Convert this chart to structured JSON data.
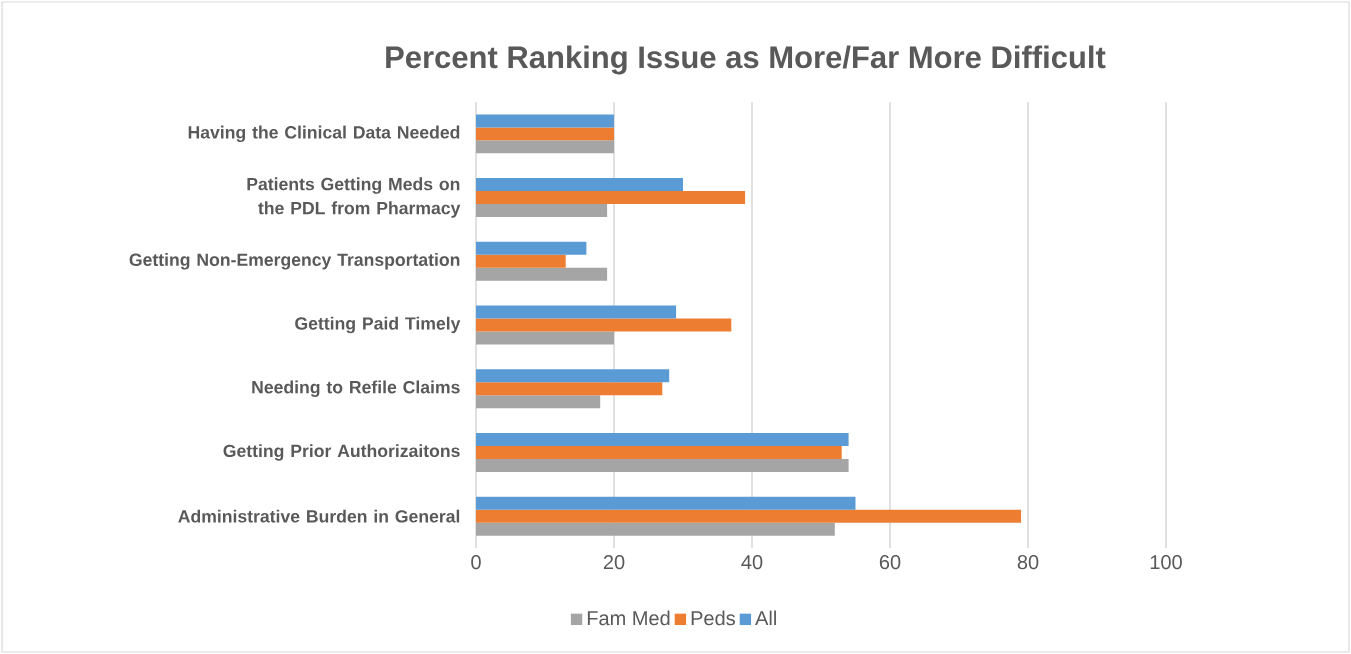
{
  "chart_data": {
    "type": "bar",
    "orientation": "horizontal",
    "title": "Percent Ranking Issue as More/Far More Difficult",
    "categories": [
      "Having the Clinical Data Needed",
      "Patients Getting Meds on the PDL from Pharmacy",
      "Getting Non-Emergency Transportation",
      "Getting Paid Timely",
      "Needing to Refile Claims",
      "Getting Prior Authorizaitons",
      "Administrative Burden in General"
    ],
    "series": [
      {
        "name": "Fam Med",
        "color": "#a5a5a5",
        "values": [
          20,
          19,
          19,
          20,
          18,
          54,
          52
        ]
      },
      {
        "name": "Peds",
        "color": "#ed7d31",
        "values": [
          20,
          39,
          13,
          37,
          27,
          53,
          79
        ]
      },
      {
        "name": "All",
        "color": "#5b9bd5",
        "values": [
          20,
          30,
          16,
          29,
          28,
          54,
          55
        ]
      }
    ],
    "xlim": [
      0,
      100
    ],
    "xticks": [
      0,
      20,
      40,
      60,
      80,
      100
    ],
    "grid": "x",
    "legend": "bottom"
  }
}
